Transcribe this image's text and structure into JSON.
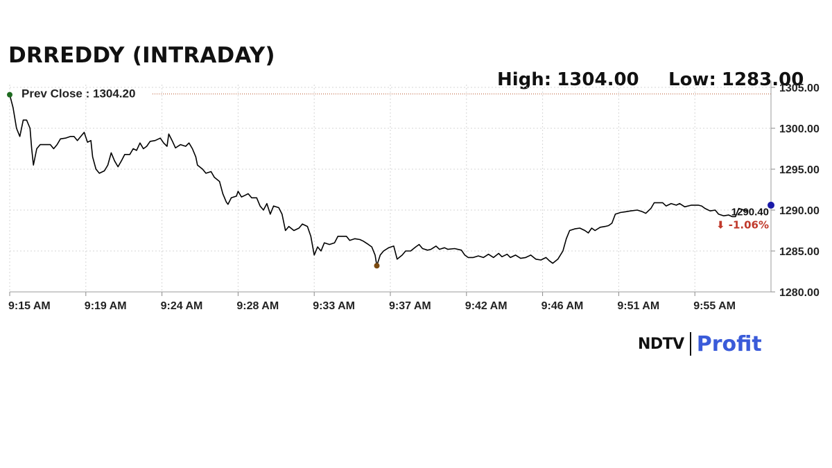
{
  "header": {
    "title": "DRREDDY (INTRADAY)",
    "high_label": "High:",
    "high_value": "1304.00",
    "low_label": "Low:",
    "low_value": "1283.00"
  },
  "logo": {
    "left": "NDTV",
    "right": "Profit"
  },
  "colors": {
    "line": "#000000",
    "prev_close": "#b9562c",
    "start_marker": "#1e6b20",
    "low_marker": "#7a4a10",
    "last_marker": "#1a1aa8",
    "change": "#c0392b",
    "grid": "#d6d6d6"
  },
  "chart_data": {
    "type": "line",
    "xlabel": "",
    "ylabel": "",
    "x_ticks": [
      "9:15 AM",
      "9:19 AM",
      "9:24 AM",
      "9:28 AM",
      "9:33 AM",
      "9:37 AM",
      "9:42 AM",
      "9:46 AM",
      "9:51 AM",
      "9:55 AM"
    ],
    "x_tick_minutes": [
      0,
      4.5,
      9,
      13.5,
      18,
      22.5,
      27,
      31.5,
      36,
      40.5
    ],
    "x_range_minutes": [
      0,
      45
    ],
    "y_ticks": [
      "1280.00",
      "1285.00",
      "1290.00",
      "1295.00",
      "1300.00",
      "1305.00"
    ],
    "ylim": [
      1280,
      1305
    ],
    "prev_close": {
      "label": "Prev Close : 1304.20",
      "value": 1304.2
    },
    "last": {
      "value": "1290.40",
      "change": "-1.06%",
      "arrow": "⬇"
    },
    "low_point": {
      "minute": 21.7,
      "value": 1283.2
    },
    "series": [
      {
        "values": [
          [
            0.0,
            1304.1
          ],
          [
            0.2,
            1302.5
          ],
          [
            0.4,
            1300.0
          ],
          [
            0.6,
            1299.0
          ],
          [
            0.8,
            1301.0
          ],
          [
            1.0,
            1301.0
          ],
          [
            1.2,
            1300.0
          ],
          [
            1.3,
            1297.5
          ],
          [
            1.4,
            1295.5
          ],
          [
            1.6,
            1297.5
          ],
          [
            1.8,
            1298.0
          ],
          [
            2.1,
            1298.0
          ],
          [
            2.4,
            1298.0
          ],
          [
            2.6,
            1297.5
          ],
          [
            2.8,
            1298.0
          ],
          [
            3.0,
            1298.7
          ],
          [
            3.3,
            1298.8
          ],
          [
            3.6,
            1299.0
          ],
          [
            3.8,
            1299.0
          ],
          [
            4.0,
            1298.5
          ],
          [
            4.2,
            1299.0
          ],
          [
            4.4,
            1299.5
          ],
          [
            4.6,
            1298.3
          ],
          [
            4.8,
            1298.5
          ],
          [
            4.9,
            1296.5
          ],
          [
            5.1,
            1295.0
          ],
          [
            5.3,
            1294.5
          ],
          [
            5.6,
            1294.8
          ],
          [
            5.8,
            1295.5
          ],
          [
            6.0,
            1297.0
          ],
          [
            6.2,
            1296.0
          ],
          [
            6.4,
            1295.3
          ],
          [
            6.6,
            1296.0
          ],
          [
            6.8,
            1296.8
          ],
          [
            7.1,
            1296.8
          ],
          [
            7.3,
            1297.5
          ],
          [
            7.5,
            1297.3
          ],
          [
            7.7,
            1298.2
          ],
          [
            7.9,
            1297.5
          ],
          [
            8.1,
            1297.8
          ],
          [
            8.3,
            1298.4
          ],
          [
            8.6,
            1298.5
          ],
          [
            8.9,
            1298.8
          ],
          [
            9.1,
            1298.2
          ],
          [
            9.3,
            1297.8
          ],
          [
            9.4,
            1299.3
          ],
          [
            9.6,
            1298.5
          ],
          [
            9.8,
            1297.6
          ],
          [
            10.1,
            1298.0
          ],
          [
            10.4,
            1297.8
          ],
          [
            10.6,
            1298.2
          ],
          [
            10.8,
            1297.5
          ],
          [
            11.0,
            1296.5
          ],
          [
            11.1,
            1295.5
          ],
          [
            11.4,
            1295.0
          ],
          [
            11.6,
            1294.5
          ],
          [
            11.9,
            1294.7
          ],
          [
            12.1,
            1294.0
          ],
          [
            12.4,
            1293.5
          ],
          [
            12.6,
            1292.0
          ],
          [
            12.8,
            1291.0
          ],
          [
            12.9,
            1290.7
          ],
          [
            13.1,
            1291.5
          ],
          [
            13.4,
            1291.7
          ],
          [
            13.5,
            1292.3
          ],
          [
            13.7,
            1291.6
          ],
          [
            13.9,
            1291.8
          ],
          [
            14.1,
            1292.0
          ],
          [
            14.3,
            1291.5
          ],
          [
            14.6,
            1291.5
          ],
          [
            14.8,
            1290.5
          ],
          [
            15.0,
            1290.0
          ],
          [
            15.2,
            1290.8
          ],
          [
            15.4,
            1289.5
          ],
          [
            15.6,
            1290.5
          ],
          [
            15.9,
            1290.3
          ],
          [
            16.1,
            1289.5
          ],
          [
            16.3,
            1287.5
          ],
          [
            16.5,
            1288.0
          ],
          [
            16.8,
            1287.5
          ],
          [
            17.1,
            1287.8
          ],
          [
            17.3,
            1288.3
          ],
          [
            17.6,
            1288.0
          ],
          [
            17.8,
            1286.8
          ],
          [
            18.0,
            1284.5
          ],
          [
            18.2,
            1285.5
          ],
          [
            18.4,
            1285.0
          ],
          [
            18.6,
            1286.0
          ],
          [
            18.9,
            1285.8
          ],
          [
            19.2,
            1286.0
          ],
          [
            19.4,
            1286.8
          ],
          [
            19.7,
            1286.8
          ],
          [
            19.9,
            1286.8
          ],
          [
            20.1,
            1286.3
          ],
          [
            20.4,
            1286.5
          ],
          [
            20.7,
            1286.4
          ],
          [
            20.9,
            1286.2
          ],
          [
            21.2,
            1285.8
          ],
          [
            21.4,
            1285.5
          ],
          [
            21.6,
            1284.5
          ],
          [
            21.7,
            1283.2
          ],
          [
            21.9,
            1284.5
          ],
          [
            22.1,
            1285.0
          ],
          [
            22.4,
            1285.4
          ],
          [
            22.7,
            1285.6
          ],
          [
            22.9,
            1284.0
          ],
          [
            23.2,
            1284.5
          ],
          [
            23.4,
            1285.0
          ],
          [
            23.7,
            1285.0
          ],
          [
            24.0,
            1285.5
          ],
          [
            24.2,
            1285.8
          ],
          [
            24.4,
            1285.3
          ],
          [
            24.7,
            1285.1
          ],
          [
            24.9,
            1285.2
          ],
          [
            25.2,
            1285.6
          ],
          [
            25.4,
            1285.2
          ],
          [
            25.7,
            1285.4
          ],
          [
            25.9,
            1285.2
          ],
          [
            26.3,
            1285.3
          ],
          [
            26.7,
            1285.1
          ],
          [
            26.9,
            1284.5
          ],
          [
            27.1,
            1284.2
          ],
          [
            27.4,
            1284.2
          ],
          [
            27.7,
            1284.4
          ],
          [
            28.0,
            1284.2
          ],
          [
            28.3,
            1284.6
          ],
          [
            28.6,
            1284.2
          ],
          [
            28.9,
            1284.7
          ],
          [
            29.1,
            1284.3
          ],
          [
            29.4,
            1284.6
          ],
          [
            29.6,
            1284.2
          ],
          [
            29.9,
            1284.5
          ],
          [
            30.2,
            1284.1
          ],
          [
            30.5,
            1284.2
          ],
          [
            30.8,
            1284.5
          ],
          [
            31.1,
            1284.0
          ],
          [
            31.4,
            1283.9
          ],
          [
            31.7,
            1284.2
          ],
          [
            31.9,
            1283.8
          ],
          [
            32.1,
            1283.5
          ],
          [
            32.4,
            1284.0
          ],
          [
            32.7,
            1285.0
          ],
          [
            32.9,
            1286.5
          ],
          [
            33.1,
            1287.5
          ],
          [
            33.4,
            1287.7
          ],
          [
            33.7,
            1287.8
          ],
          [
            34.0,
            1287.5
          ],
          [
            34.2,
            1287.2
          ],
          [
            34.4,
            1287.8
          ],
          [
            34.6,
            1287.5
          ],
          [
            34.9,
            1287.9
          ],
          [
            35.2,
            1288.0
          ],
          [
            35.4,
            1288.1
          ],
          [
            35.6,
            1288.4
          ],
          [
            35.8,
            1289.5
          ],
          [
            36.1,
            1289.7
          ],
          [
            36.4,
            1289.8
          ],
          [
            36.7,
            1289.9
          ],
          [
            37.1,
            1290.0
          ],
          [
            37.4,
            1289.8
          ],
          [
            37.6,
            1289.6
          ],
          [
            37.9,
            1290.2
          ],
          [
            38.1,
            1290.9
          ],
          [
            38.4,
            1290.9
          ],
          [
            38.6,
            1290.9
          ],
          [
            38.8,
            1290.5
          ],
          [
            39.1,
            1290.8
          ],
          [
            39.4,
            1290.6
          ],
          [
            39.6,
            1290.8
          ],
          [
            39.9,
            1290.4
          ],
          [
            40.3,
            1290.6
          ],
          [
            40.7,
            1290.6
          ],
          [
            40.9,
            1290.5
          ],
          [
            41.1,
            1290.2
          ],
          [
            41.4,
            1289.9
          ],
          [
            41.7,
            1290.0
          ],
          [
            41.9,
            1289.5
          ],
          [
            42.2,
            1289.3
          ],
          [
            42.5,
            1289.4
          ],
          [
            42.7,
            1289.2
          ],
          [
            42.9,
            1289.2
          ],
          [
            43.1,
            1290.2
          ],
          [
            43.4,
            1290.0
          ],
          [
            43.6,
            1289.9
          ]
        ]
      }
    ]
  }
}
